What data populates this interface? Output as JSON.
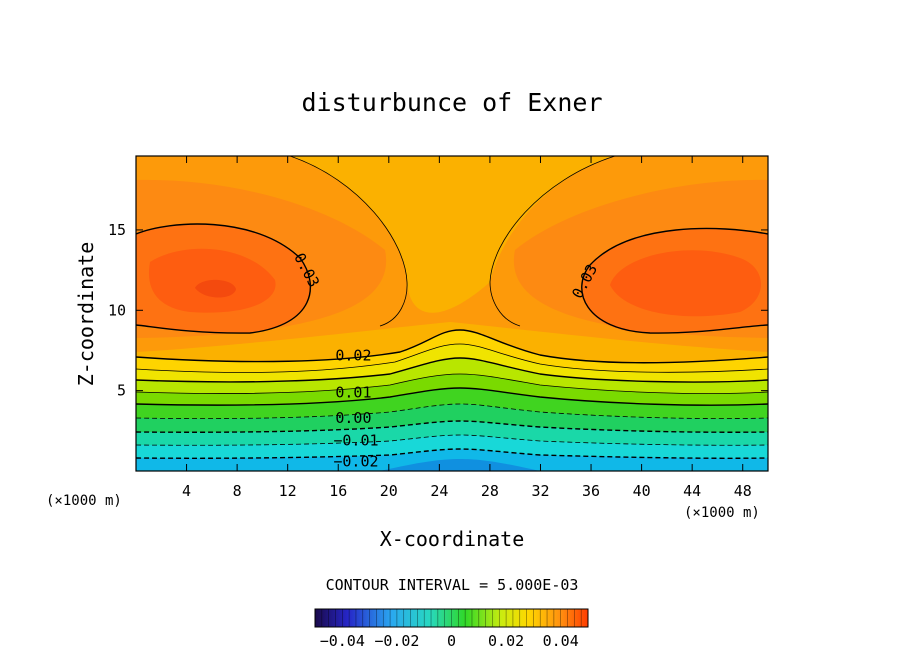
{
  "chart_data": {
    "type": "contour",
    "title": "disturbunce of Exner",
    "xlabel": "X-coordinate",
    "ylabel": "Z-coordinate",
    "x_unit": "(×1000 m)",
    "y_unit": "(×1000 m)",
    "xlim": [
      0,
      50
    ],
    "ylim": [
      0,
      19.6
    ],
    "x_ticks": [
      4,
      8,
      12,
      16,
      20,
      24,
      28,
      32,
      36,
      40,
      44,
      48
    ],
    "x_tick_labels": [
      "4",
      "8",
      "12",
      "16",
      "20",
      "24",
      "28",
      "32",
      "36",
      "40",
      "44",
      "48"
    ],
    "y_ticks": [
      5,
      10,
      15
    ],
    "y_tick_labels": [
      "5",
      "10",
      "15"
    ],
    "contour_interval_text": "CONTOUR INTERVAL = 5.000E-03",
    "contour_labels": [
      {
        "text": "0.03",
        "x": 13.5,
        "z": 12.5,
        "rotate": 62
      },
      {
        "text": "0.03",
        "x": 35.5,
        "z": 11.8,
        "rotate": -62
      },
      {
        "text": "0.02",
        "x": 17.2,
        "z": 7.2,
        "rotate": 0
      },
      {
        "text": "0.01",
        "x": 17.2,
        "z": 4.9,
        "rotate": 0
      },
      {
        "text": "0.00",
        "x": 17.2,
        "z": 3.3,
        "rotate": 0
      },
      {
        "text": "−0.01",
        "x": 17.4,
        "z": 1.9,
        "rotate": 0
      },
      {
        "text": "−0.02",
        "x": 17.4,
        "z": 0.6,
        "rotate": 0
      }
    ],
    "colorbar": {
      "range": [
        -0.05,
        0.05
      ],
      "ticks": [
        -0.04,
        -0.02,
        0,
        0.02,
        0.04
      ],
      "tick_labels": [
        "−0.04",
        "−0.02",
        "0",
        "0.02",
        "0.04"
      ]
    }
  }
}
